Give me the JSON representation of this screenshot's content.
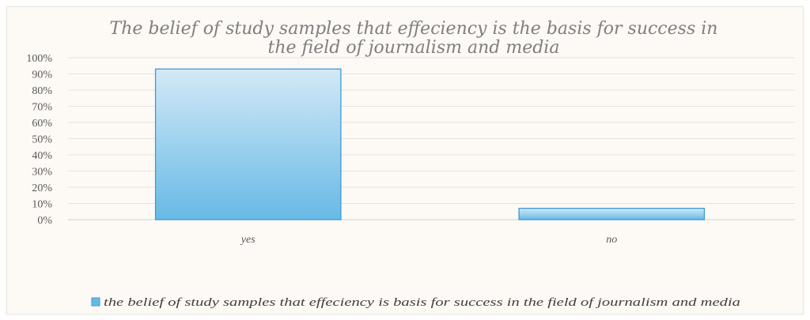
{
  "chart_data": {
    "type": "bar",
    "title_lines": [
      "The belief of study samples that effeciency is the basis for success in",
      "the field of journalism and media"
    ],
    "categories": [
      "yes",
      "no"
    ],
    "series": [
      {
        "name": "the belief of study samples that effeciency is basis for success in the field of journalism and media",
        "values": [
          93,
          7
        ]
      }
    ],
    "ylim": [
      0,
      100
    ],
    "y_ticks": [
      0,
      10,
      20,
      30,
      40,
      50,
      60,
      70,
      80,
      90,
      100
    ],
    "y_tick_suffix": "%",
    "grid": true,
    "legend_position": "bottom",
    "colors": {
      "bar_top": "#d3e9f7",
      "bar_bottom": "#67b9e6",
      "bar_border": "#3f9bd6",
      "grid": "#e6e1db",
      "axis": "#d4cfc9"
    }
  }
}
